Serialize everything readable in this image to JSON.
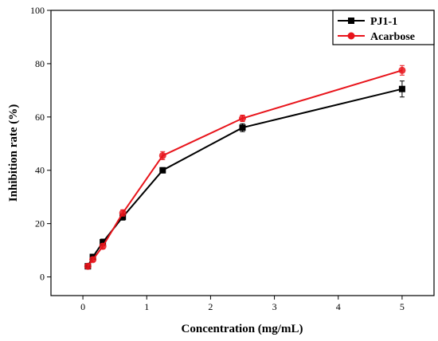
{
  "chart_data": {
    "type": "line",
    "xlabel": "Concentration (mg/mL)",
    "ylabel": "Inhibition rate (%)",
    "xlim": [
      -0.5,
      5.5
    ],
    "ylim": [
      -7,
      100
    ],
    "xticks": [
      0,
      1,
      2,
      3,
      4,
      5
    ],
    "yticks": [
      0,
      20,
      40,
      60,
      80,
      100
    ],
    "grid": false,
    "legend_position": "top-right",
    "series": [
      {
        "name": "PJ1-1",
        "color": "#000000",
        "marker": "square",
        "x": [
          0.078,
          0.156,
          0.3125,
          0.625,
          1.25,
          2.5,
          5
        ],
        "y": [
          4,
          7.5,
          13,
          22.5,
          40,
          56,
          70.5
        ],
        "error": [
          0.8,
          1.0,
          1.2,
          1.2,
          1.0,
          1.5,
          3.0
        ]
      },
      {
        "name": "Acarbose",
        "color": "#e8141b",
        "marker": "circle",
        "x": [
          0.078,
          0.156,
          0.3125,
          0.625,
          1.25,
          2.5,
          5
        ],
        "y": [
          4,
          6.5,
          11.5,
          24,
          45.5,
          59.5,
          77.5
        ],
        "error": [
          0.8,
          0.8,
          1.0,
          1.2,
          1.5,
          1.2,
          1.8
        ]
      }
    ]
  }
}
